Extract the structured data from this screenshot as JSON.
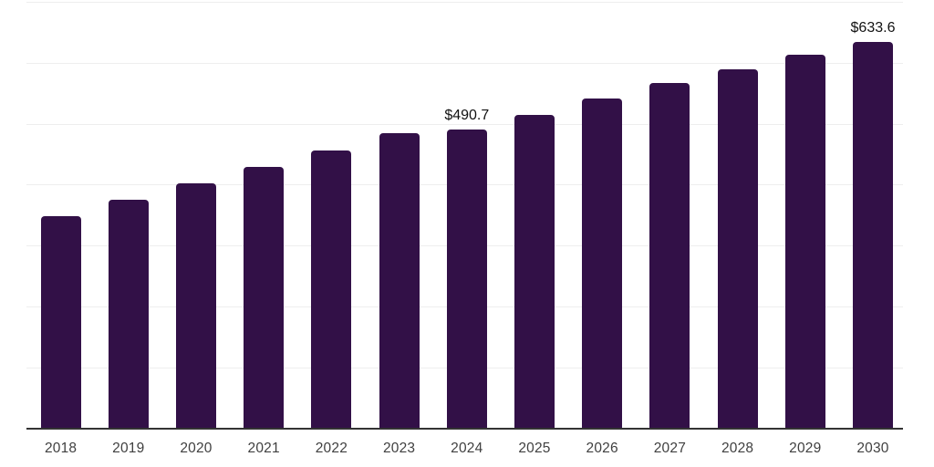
{
  "chart_data": {
    "type": "bar",
    "title": "",
    "xlabel": "",
    "ylabel": "",
    "categories": [
      "2018",
      "2019",
      "2020",
      "2021",
      "2022",
      "2023",
      "2024",
      "2025",
      "2026",
      "2027",
      "2028",
      "2029",
      "2030"
    ],
    "values": [
      347.7,
      375.5,
      402.3,
      429.0,
      456.2,
      483.8,
      490.7,
      513.9,
      541.8,
      567.2,
      589.6,
      612.5,
      633.6
    ],
    "value_labels": [
      {
        "index": 6,
        "text": "$490.7"
      },
      {
        "index": 12,
        "text": "$633.6"
      }
    ],
    "ylim": [
      0,
      700
    ],
    "gridline_step": 100,
    "grid": "horizontal, unlabeled",
    "y_axis_tick_labels": "none",
    "legend": "none",
    "colors": {
      "bar": "#321047",
      "gridline": "#eeeeee",
      "axis_line": "#333333",
      "tick_label": "#404040",
      "value_label": "#111111",
      "background": "#ffffff"
    }
  }
}
